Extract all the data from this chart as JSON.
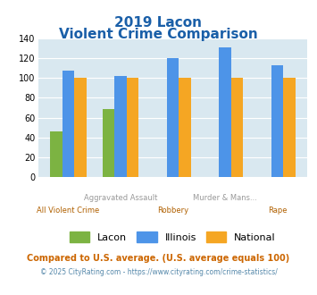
{
  "title_line1": "2019 Lacon",
  "title_line2": "Violent Crime Comparison",
  "cat_top": [
    "",
    "Aggravated Assault",
    "",
    "Murder & Mans...",
    ""
  ],
  "cat_bottom": [
    "All Violent Crime",
    "",
    "Robbery",
    "",
    "Rape"
  ],
  "lacon": [
    46,
    69,
    0,
    0,
    0
  ],
  "illinois": [
    107,
    102,
    120,
    131,
    113
  ],
  "national": [
    100,
    100,
    100,
    100,
    100
  ],
  "lacon_color": "#7cb342",
  "illinois_color": "#4d94e8",
  "national_color": "#f5a623",
  "bg_color": "#d9e8f0",
  "ylim": [
    0,
    140
  ],
  "yticks": [
    0,
    20,
    40,
    60,
    80,
    100,
    120,
    140
  ],
  "title_color": "#1a5fa8",
  "xlabel_top_color": "#999999",
  "xlabel_bottom_color": "#b06000",
  "footnote1": "Compared to U.S. average. (U.S. average equals 100)",
  "footnote2": "© 2025 CityRating.com - https://www.cityrating.com/crime-statistics/",
  "footnote1_color": "#cc6600",
  "footnote2_color": "#5588aa"
}
